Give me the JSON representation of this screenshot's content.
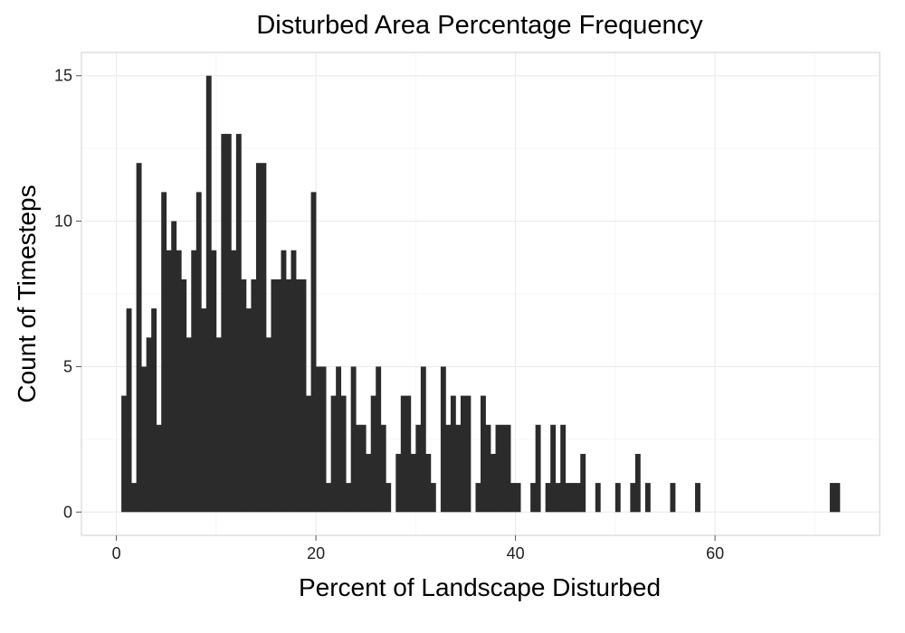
{
  "chart_data": {
    "type": "bar",
    "title": "Disturbed Area Percentage Frequency",
    "xlabel": "Percent of Landscape Disturbed",
    "ylabel": "Count of Timesteps",
    "xlim": [
      -3.5,
      76.5
    ],
    "ylim": [
      -0.8,
      15.8
    ],
    "xticks": [
      0,
      20,
      40,
      60
    ],
    "yticks": [
      0,
      5,
      10,
      15
    ],
    "grid": true,
    "bar_color": "#2b2b2b",
    "bin_width": 0.48,
    "bins": [
      [
        0.5,
        4
      ],
      [
        1.0,
        7
      ],
      [
        1.5,
        1
      ],
      [
        2.0,
        12
      ],
      [
        2.5,
        5
      ],
      [
        3.0,
        6
      ],
      [
        3.5,
        7
      ],
      [
        4.0,
        3
      ],
      [
        4.5,
        11
      ],
      [
        5.0,
        9
      ],
      [
        5.5,
        10
      ],
      [
        6.0,
        9
      ],
      [
        6.5,
        8
      ],
      [
        7.0,
        6
      ],
      [
        7.5,
        9
      ],
      [
        8.0,
        11
      ],
      [
        8.5,
        7
      ],
      [
        9.0,
        15
      ],
      [
        9.5,
        9
      ],
      [
        10.0,
        6
      ],
      [
        10.5,
        13
      ],
      [
        11.0,
        13
      ],
      [
        11.5,
        9
      ],
      [
        12.0,
        13
      ],
      [
        12.5,
        8
      ],
      [
        13.0,
        7
      ],
      [
        13.5,
        8
      ],
      [
        14.0,
        12
      ],
      [
        14.5,
        12
      ],
      [
        15.0,
        6
      ],
      [
        15.5,
        8
      ],
      [
        16.0,
        8
      ],
      [
        16.5,
        9
      ],
      [
        17.0,
        8
      ],
      [
        17.5,
        9
      ],
      [
        18.0,
        8
      ],
      [
        18.5,
        8
      ],
      [
        19.0,
        4
      ],
      [
        19.5,
        11
      ],
      [
        20.0,
        5
      ],
      [
        20.5,
        5
      ],
      [
        21.0,
        1
      ],
      [
        21.5,
        4
      ],
      [
        22.0,
        5
      ],
      [
        22.5,
        4
      ],
      [
        23.0,
        1
      ],
      [
        23.5,
        5
      ],
      [
        24.0,
        3
      ],
      [
        24.5,
        3
      ],
      [
        25.0,
        2
      ],
      [
        25.5,
        4
      ],
      [
        26.0,
        5
      ],
      [
        26.5,
        3
      ],
      [
        27.0,
        1
      ],
      [
        28.0,
        2
      ],
      [
        28.5,
        4
      ],
      [
        29.0,
        4
      ],
      [
        29.5,
        2
      ],
      [
        30.0,
        3
      ],
      [
        30.5,
        5
      ],
      [
        31.0,
        2
      ],
      [
        31.5,
        1
      ],
      [
        32.5,
        5
      ],
      [
        33.0,
        3
      ],
      [
        33.5,
        4
      ],
      [
        34.0,
        3
      ],
      [
        34.5,
        4
      ],
      [
        35.0,
        4
      ],
      [
        36.0,
        1
      ],
      [
        36.5,
        4
      ],
      [
        37.0,
        3
      ],
      [
        37.5,
        2
      ],
      [
        38.0,
        3
      ],
      [
        38.5,
        3
      ],
      [
        39.0,
        3
      ],
      [
        39.5,
        1
      ],
      [
        40.0,
        1
      ],
      [
        41.5,
        1
      ],
      [
        42.0,
        3
      ],
      [
        43.0,
        1
      ],
      [
        43.5,
        3
      ],
      [
        44.0,
        1
      ],
      [
        44.5,
        3
      ],
      [
        45.0,
        1
      ],
      [
        45.5,
        1
      ],
      [
        46.0,
        1
      ],
      [
        46.5,
        2
      ],
      [
        48.0,
        1
      ],
      [
        50.0,
        1
      ],
      [
        51.5,
        1
      ],
      [
        52.0,
        2
      ],
      [
        53.0,
        1
      ],
      [
        55.5,
        1
      ],
      [
        58.0,
        1
      ],
      [
        71.5,
        1
      ],
      [
        72.0,
        1
      ]
    ]
  }
}
